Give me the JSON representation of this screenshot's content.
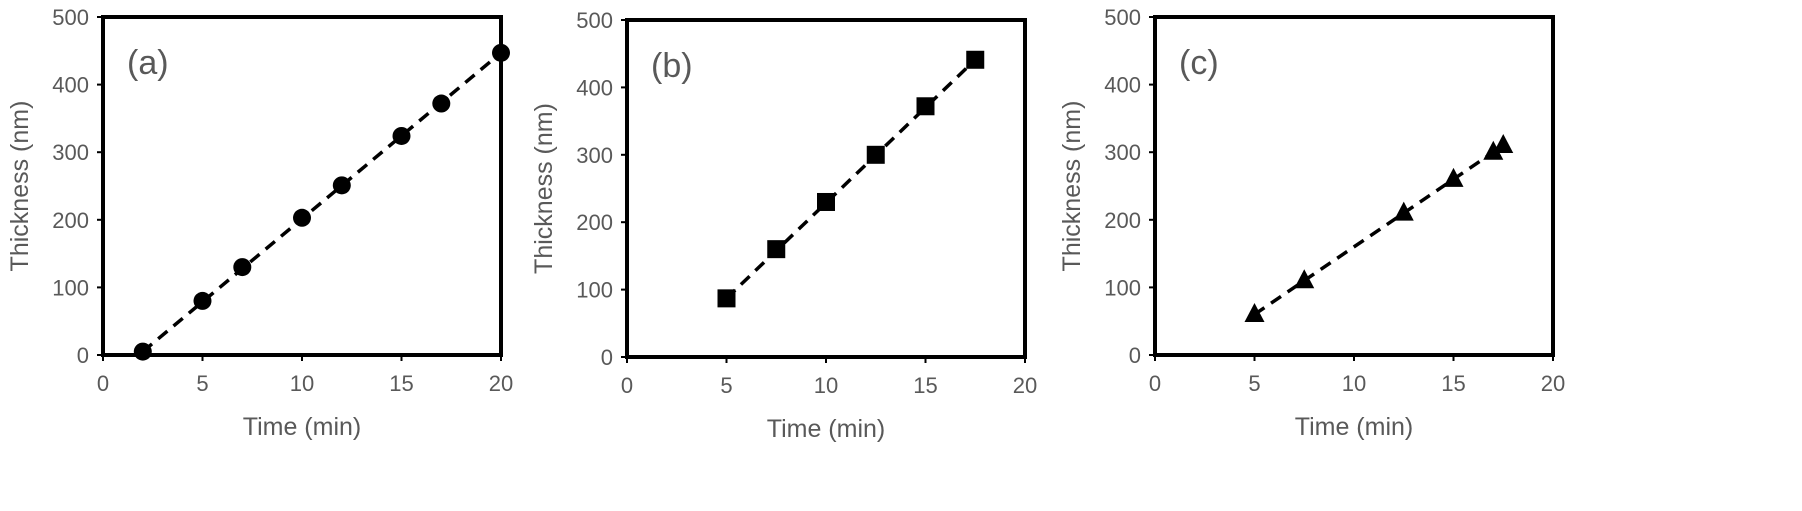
{
  "chart_data": [
    {
      "type": "scatter",
      "panel_label": "(a)",
      "xlabel": "Time (min)",
      "ylabel": "Thickness (nm)",
      "xlim": [
        0,
        20
      ],
      "ylim": [
        0,
        500
      ],
      "xticks": [
        0,
        5,
        10,
        15,
        20
      ],
      "yticks": [
        0,
        100,
        200,
        300,
        400,
        500
      ],
      "grid": false,
      "marker": "circle",
      "series": [
        {
          "x": [
            2,
            5,
            7,
            10,
            12,
            15,
            17,
            20
          ],
          "y": [
            5,
            80,
            130,
            203,
            251,
            324,
            372,
            447
          ]
        }
      ],
      "trendline": {
        "x": [
          2,
          20
        ],
        "y": [
          5,
          447
        ],
        "style": "dashed"
      }
    },
    {
      "type": "scatter",
      "panel_label": "(b)",
      "xlabel": "Time (min)",
      "ylabel": "Thickness (nm)",
      "xlim": [
        0,
        20
      ],
      "ylim": [
        0,
        500
      ],
      "xticks": [
        0,
        5,
        10,
        15,
        20
      ],
      "yticks": [
        0,
        100,
        200,
        300,
        400,
        500
      ],
      "grid": false,
      "marker": "square",
      "series": [
        {
          "x": [
            5,
            7.5,
            10,
            12.5,
            15,
            17.5
          ],
          "y": [
            87,
            160,
            230,
            300,
            372,
            441
          ]
        }
      ],
      "trendline": {
        "x": [
          5,
          17.5
        ],
        "y": [
          87,
          441
        ],
        "style": "dashed"
      }
    },
    {
      "type": "scatter",
      "panel_label": "(c)",
      "xlabel": "Time (min)",
      "ylabel": "Thickness (nm)",
      "xlim": [
        0,
        20
      ],
      "ylim": [
        0,
        500
      ],
      "xticks": [
        0,
        5,
        10,
        15,
        20
      ],
      "yticks": [
        0,
        100,
        200,
        300,
        400,
        500
      ],
      "grid": false,
      "marker": "triangle",
      "series": [
        {
          "x": [
            5,
            7.5,
            12.5,
            15,
            17,
            17.5
          ],
          "y": [
            60,
            110,
            210,
            260,
            300,
            310
          ]
        }
      ],
      "trendline": {
        "x": [
          5,
          17.5
        ],
        "y": [
          60,
          310
        ],
        "style": "dashed"
      }
    }
  ]
}
